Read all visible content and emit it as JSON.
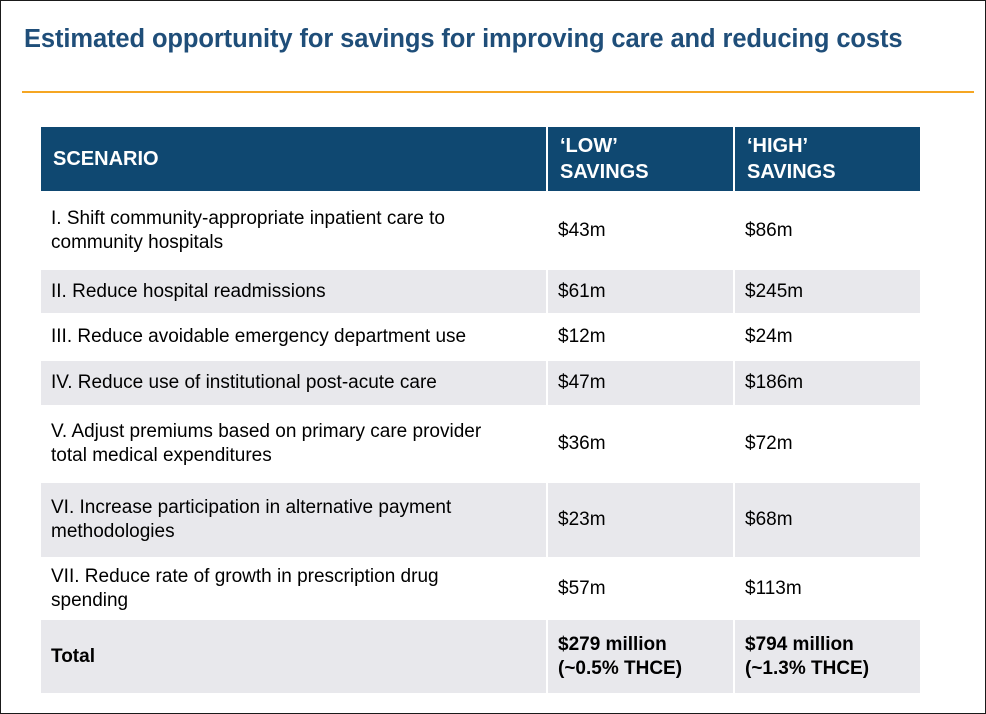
{
  "title": "Estimated opportunity for savings for improving care and reducing costs",
  "table": {
    "headers": {
      "scenario": "SCENARIO",
      "low": [
        "‘LOW’",
        "SAVINGS"
      ],
      "high": [
        "‘HIGH’",
        "SAVINGS"
      ]
    },
    "rows": [
      {
        "scenario": [
          "I. Shift community-appropriate inpatient care to",
          "community hospitals"
        ],
        "low": "$43m",
        "high": "$86m"
      },
      {
        "scenario": [
          "II. Reduce hospital readmissions"
        ],
        "low": "$61m",
        "high": "$245m"
      },
      {
        "scenario": [
          "III. Reduce avoidable emergency department use"
        ],
        "low": "$12m",
        "high": "$24m"
      },
      {
        "scenario": [
          "IV. Reduce use of institutional post-acute care"
        ],
        "low": "$47m",
        "high": "$186m"
      },
      {
        "scenario": [
          "V. Adjust premiums based on primary care provider",
          "total medical expenditures"
        ],
        "low": "$36m",
        "high": "$72m"
      },
      {
        "scenario": [
          "VI. Increase participation in alternative payment",
          "methodologies"
        ],
        "low": "$23m",
        "high": "$68m"
      },
      {
        "scenario": [
          "VII. Reduce rate of growth in prescription drug",
          "spending"
        ],
        "low": "$57m",
        "high": "$113m"
      }
    ],
    "total": {
      "label": "Total",
      "low": [
        "$279 million",
        "(~0.5% THCE)"
      ],
      "high": [
        "$794 million",
        "(~1.3% THCE)"
      ]
    }
  }
}
